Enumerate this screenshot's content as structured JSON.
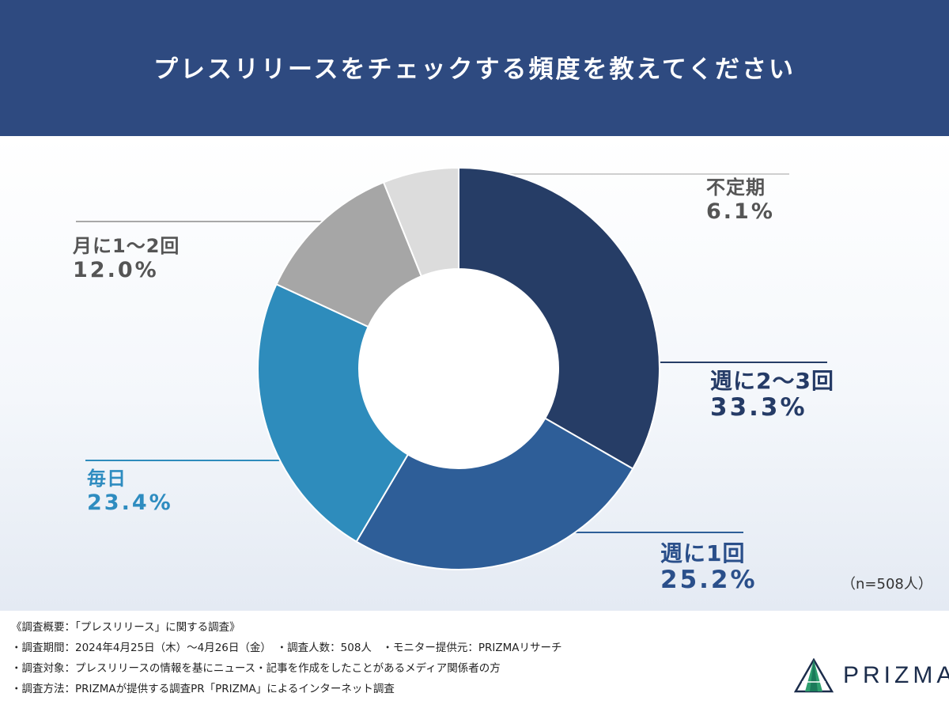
{
  "header": {
    "title": "プレスリリースをチェックする頻度を教えてください"
  },
  "chart_data": {
    "type": "pie",
    "donut": true,
    "categories": [
      "週に2〜3回",
      "週に1回",
      "毎日",
      "月に1〜2回",
      "不定期"
    ],
    "values": [
      33.3,
      25.2,
      23.4,
      12.0,
      6.1
    ],
    "value_labels": [
      "33.3%",
      "25.2%",
      "23.4%",
      "12.0%",
      "6.1%"
    ],
    "colors": [
      "#263d66",
      "#2e5e98",
      "#2e8cbc",
      "#a6a6a6",
      "#dcdcdc"
    ],
    "unit": "%",
    "start_angle_deg": 0,
    "direction": "clockwise",
    "sample_size_label": "（n=508人）"
  },
  "footer": {
    "notes": [
      "《調査概要：「プレスリリース」に関する調査》",
      "・調査期間：2024年4月25日（木）〜4月26日（金）　・調査人数：508人　・モニター提供元：PRIZMAリサーチ",
      "・調査対象：プレスリリースの情報を基にニュース・記事を作成をしたことがあるメディア関係者の方",
      "・調査方法：PRIZMAが提供する調査PR「PRIZMA」によるインターネット調査"
    ],
    "brand": "PRIZMA",
    "brand_icon": "prizma-logo-icon"
  }
}
